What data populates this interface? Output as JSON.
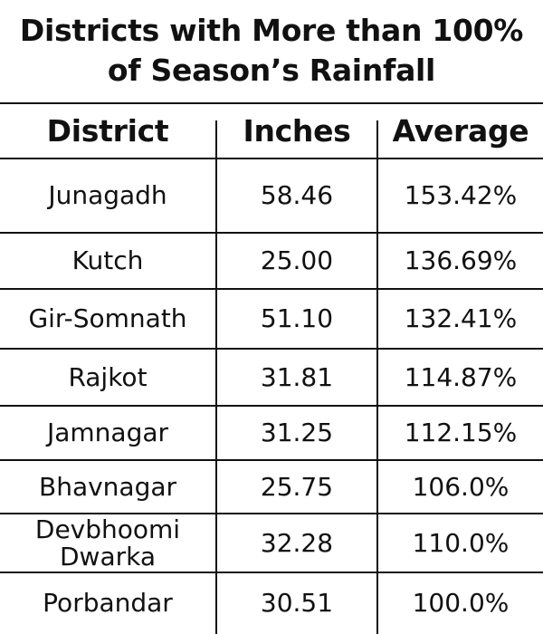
{
  "chart_data": {
    "type": "table",
    "title_lines": [
      "Districts with More than 100%",
      "of Season’s Rainfall"
    ],
    "columns": [
      "District",
      "Inches",
      "Average"
    ],
    "rows": [
      {
        "district": "Junagadh",
        "inches": "58.46",
        "average": "153.42%"
      },
      {
        "district": "Kutch",
        "inches": "25.00",
        "average": "136.69%"
      },
      {
        "district": "Gir-Somnath",
        "inches": "51.10",
        "average": "132.41%"
      },
      {
        "district": "Rajkot",
        "inches": "31.81",
        "average": "114.87%"
      },
      {
        "district": "Jamnagar",
        "inches": "31.25",
        "average": "112.15%"
      },
      {
        "district": "Bhavnagar",
        "inches": "25.75",
        "average": "106.0%"
      },
      {
        "district": "Devbhoomi\nDwarka",
        "inches": "32.28",
        "average": "110.0%"
      },
      {
        "district": "Porbandar",
        "inches": "30.51",
        "average": "100.0%"
      }
    ]
  }
}
